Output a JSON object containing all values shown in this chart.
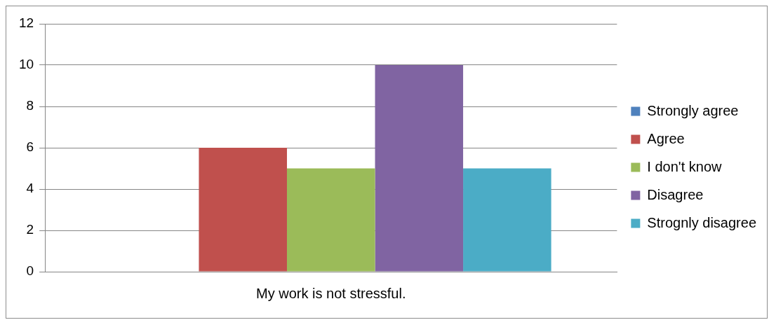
{
  "chart_data": {
    "type": "bar",
    "categories": [
      "My work is not stressful."
    ],
    "series": [
      {
        "name": "Strongly agree",
        "color": "#4f81bd",
        "values": [
          0
        ]
      },
      {
        "name": "Agree",
        "color": "#c0504d",
        "values": [
          6
        ]
      },
      {
        "name": "I don't know",
        "color": "#9bbb59",
        "values": [
          5
        ]
      },
      {
        "name": "Disagree",
        "color": "#8064a2",
        "values": [
          10
        ]
      },
      {
        "name": "Strognly disagree",
        "color": "#4bacc6",
        "values": [
          5
        ]
      }
    ],
    "ylim": [
      0,
      12
    ],
    "yticks": [
      0,
      2,
      4,
      6,
      8,
      10,
      12
    ],
    "grid": "y",
    "legend": "right"
  }
}
